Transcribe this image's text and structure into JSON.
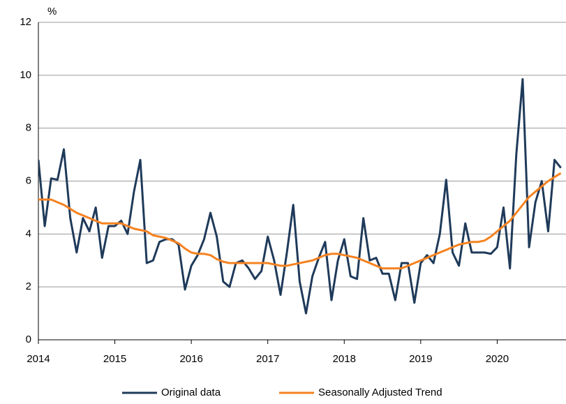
{
  "chart_data": {
    "type": "line",
    "y_label": "%",
    "x": [
      2014,
      2014.083,
      2014.167,
      2014.25,
      2014.333,
      2014.417,
      2014.5,
      2014.583,
      2014.667,
      2014.75,
      2014.833,
      2014.917,
      2015,
      2015.083,
      2015.167,
      2015.25,
      2015.333,
      2015.417,
      2015.5,
      2015.583,
      2015.667,
      2015.75,
      2015.833,
      2015.917,
      2016,
      2016.083,
      2016.167,
      2016.25,
      2016.333,
      2016.417,
      2016.5,
      2016.583,
      2016.667,
      2016.75,
      2016.833,
      2016.917,
      2017,
      2017.083,
      2017.167,
      2017.25,
      2017.333,
      2017.417,
      2017.5,
      2017.583,
      2017.667,
      2017.75,
      2017.833,
      2017.917,
      2018,
      2018.083,
      2018.167,
      2018.25,
      2018.333,
      2018.417,
      2018.5,
      2018.583,
      2018.667,
      2018.75,
      2018.833,
      2018.917,
      2019,
      2019.083,
      2019.167,
      2019.25,
      2019.333,
      2019.417,
      2019.5,
      2019.583,
      2019.667,
      2019.75,
      2019.833,
      2019.917,
      2020,
      2020.083,
      2020.167,
      2020.25,
      2020.333,
      2020.417,
      2020.5,
      2020.583,
      2020.667,
      2020.75,
      2020.833
    ],
    "series": [
      {
        "name": "Original data",
        "color": "#1f3a5a",
        "values": [
          6.8,
          4.3,
          6.1,
          6.05,
          7.2,
          4.6,
          3.3,
          4.6,
          4.1,
          5.0,
          3.1,
          4.3,
          4.3,
          4.5,
          4.0,
          5.6,
          6.8,
          2.9,
          3.0,
          3.7,
          3.8,
          3.8,
          3.6,
          1.9,
          2.8,
          3.2,
          3.8,
          4.8,
          3.9,
          2.2,
          2.0,
          2.9,
          3.0,
          2.7,
          2.3,
          2.6,
          3.9,
          3.0,
          1.7,
          3.3,
          5.1,
          2.2,
          1.0,
          2.4,
          3.1,
          3.7,
          1.5,
          3.0,
          3.8,
          2.4,
          2.3,
          4.6,
          3.0,
          3.1,
          2.5,
          2.5,
          1.5,
          2.9,
          2.9,
          1.4,
          2.9,
          3.2,
          2.9,
          4.0,
          6.05,
          3.3,
          2.8,
          4.4,
          3.3,
          3.3,
          3.3,
          3.25,
          3.5,
          5.0,
          2.7,
          7.0,
          9.85,
          3.5,
          5.2,
          6.0,
          4.1,
          6.8,
          6.5
        ]
      },
      {
        "name": "Seasonally Adjusted Trend",
        "color": "#f58220",
        "values": [
          5.3,
          5.3,
          5.3,
          5.2,
          5.1,
          4.95,
          4.8,
          4.7,
          4.6,
          4.5,
          4.4,
          4.4,
          4.4,
          4.4,
          4.3,
          4.2,
          4.15,
          4.1,
          3.95,
          3.9,
          3.85,
          3.75,
          3.65,
          3.45,
          3.3,
          3.25,
          3.25,
          3.2,
          3.05,
          2.95,
          2.9,
          2.9,
          2.9,
          2.9,
          2.9,
          2.9,
          2.9,
          2.85,
          2.8,
          2.8,
          2.85,
          2.9,
          2.95,
          3.0,
          3.1,
          3.2,
          3.25,
          3.25,
          3.2,
          3.15,
          3.1,
          3.0,
          2.9,
          2.8,
          2.7,
          2.7,
          2.7,
          2.7,
          2.8,
          2.9,
          3.0,
          3.1,
          3.2,
          3.3,
          3.4,
          3.5,
          3.6,
          3.65,
          3.7,
          3.7,
          3.75,
          3.9,
          4.1,
          4.3,
          4.5,
          4.8,
          5.1,
          5.4,
          5.6,
          5.8,
          6.0,
          6.15,
          6.3
        ]
      }
    ],
    "xlim": [
      2014,
      2020.9
    ],
    "xticks": [
      2014,
      2015,
      2016,
      2017,
      2018,
      2019,
      2020
    ],
    "ylim": [
      0,
      12
    ],
    "yticks": [
      0,
      2,
      4,
      6,
      8,
      10,
      12
    ],
    "grid": true,
    "legend": "bottom"
  }
}
